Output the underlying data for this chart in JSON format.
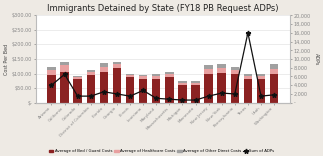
{
  "title": "Immigrants Detained by State (FY18 PB Request ADPs)",
  "states": [
    "Arizona",
    "California",
    "Colorado",
    "District of Columbia",
    "Florida",
    "Georgia",
    "Illinois",
    "Louisiana",
    "Maryland",
    "Massachusetts",
    "Michigan",
    "Minnesota",
    "New Jersey",
    "New York",
    "Pennsylvania",
    "Texas",
    "Utah",
    "Washington"
  ],
  "bed_guard": [
    95,
    105,
    80,
    95,
    105,
    118,
    88,
    83,
    83,
    88,
    62,
    62,
    98,
    103,
    98,
    82,
    82,
    98
  ],
  "healthcare": [
    16,
    24,
    7,
    11,
    19,
    14,
    7,
    7,
    7,
    11,
    7,
    7,
    17,
    17,
    14,
    9,
    9,
    17
  ],
  "other_direct": [
    10,
    10,
    4,
    7,
    13,
    9,
    4,
    4,
    7,
    7,
    4,
    4,
    13,
    13,
    9,
    7,
    7,
    18
  ],
  "adp": [
    4000,
    6500,
    1500,
    1500,
    2500,
    2000,
    1500,
    2800,
    1000,
    800,
    600,
    600,
    1500,
    2200,
    2000,
    16000,
    1500,
    1800
  ],
  "color_bed": "#8B2222",
  "color_healthcare": "#E8A0A0",
  "color_other": "#A0A0A0",
  "color_line": "#111111",
  "ylabel_left": "Cost Per Bed",
  "ylabel_right": "ADPs",
  "ylim_left": [
    0,
    300
  ],
  "ylim_right": [
    0,
    20000
  ],
  "yticks_left": [
    0,
    50,
    100,
    150,
    200,
    250,
    300
  ],
  "ytick_labels_left": [
    "$-",
    "$50.00",
    "$100.00",
    "$150.00",
    "$200.00",
    "$250.00",
    "$300.00"
  ],
  "yticks_right": [
    0,
    2000,
    4000,
    6000,
    8000,
    10000,
    12000,
    14000,
    16000,
    18000,
    20000
  ],
  "ytick_labels_right": [
    "-",
    "2,000",
    "4,000",
    "6,000",
    "8,000",
    "10,000",
    "12,000",
    "14,000",
    "16,000",
    "18,000",
    "20,000"
  ],
  "legend_labels": [
    "Average of Bed / Guard Costs",
    "Average of Healthcare Costs",
    "Average of Other Direct Costs",
    "Sum of ADPs"
  ],
  "bg_color": "#EEEAE4",
  "plot_bg": "#FFFFFF"
}
